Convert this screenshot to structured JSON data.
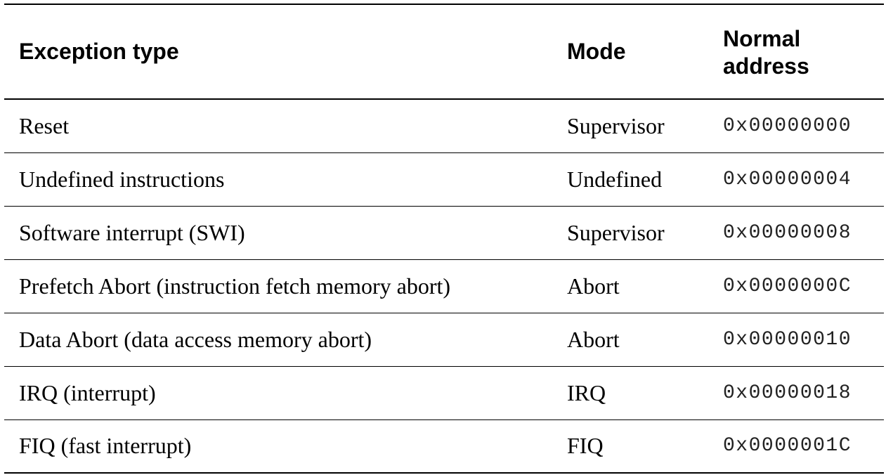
{
  "table": {
    "headers": {
      "exception_type": "Exception type",
      "mode": "Mode",
      "address_line1": "Normal",
      "address_line2": "address"
    },
    "rows": [
      {
        "exception": "Reset",
        "mode": "Supervisor",
        "address": "0x00000000"
      },
      {
        "exception": "Undefined instructions",
        "mode": "Undefined",
        "address": "0x00000004"
      },
      {
        "exception": "Software interrupt (SWI)",
        "mode": "Supervisor",
        "address": "0x00000008"
      },
      {
        "exception": "Prefetch Abort (instruction fetch memory abort)",
        "mode": "Abort",
        "address": "0x0000000C"
      },
      {
        "exception": "Data Abort (data access memory abort)",
        "mode": "Abort",
        "address": "0x00000010"
      },
      {
        "exception": "IRQ (interrupt)",
        "mode": "IRQ",
        "address": "0x00000018"
      },
      {
        "exception": "FIQ (fast interrupt)",
        "mode": "FIQ",
        "address": "0x0000001C"
      }
    ]
  }
}
